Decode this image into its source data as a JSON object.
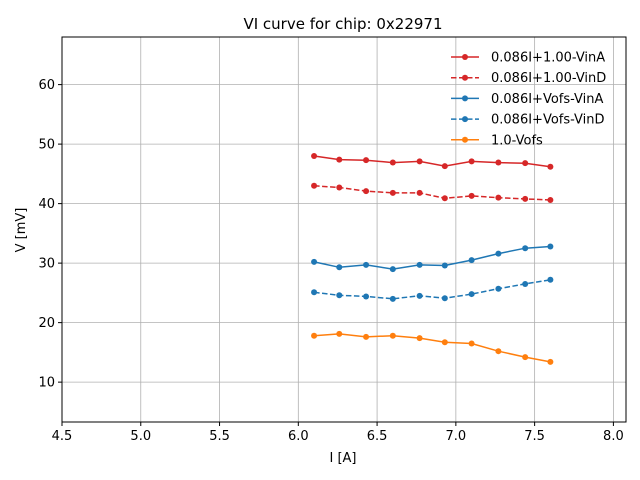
{
  "chart_data": {
    "type": "line",
    "title": "VI curve for chip: 0x22971",
    "xlabel": "I [A]",
    "ylabel": "V [mV]",
    "xlim": [
      4.5,
      8.08
    ],
    "ylim": [
      3.3,
      68
    ],
    "grid": true,
    "legend_position": "top-right",
    "xticks": [
      4.5,
      5.0,
      5.5,
      6.0,
      6.5,
      7.0,
      7.5,
      8.0
    ],
    "xtick_labels": [
      "4.5",
      "5.0",
      "5.5",
      "6.0",
      "6.5",
      "7.0",
      "7.5",
      "8.0"
    ],
    "yticks": [
      10,
      20,
      30,
      40,
      50,
      60
    ],
    "ytick_labels": [
      "10",
      "20",
      "30",
      "40",
      "50",
      "60"
    ],
    "x": [
      6.1,
      6.26,
      6.43,
      6.6,
      6.77,
      6.93,
      7.1,
      7.27,
      7.44,
      7.6
    ],
    "series": [
      {
        "name": "0.086I+1.00-VinA",
        "color": "#d62728",
        "dashed": false,
        "values": [
          48.0,
          47.4,
          47.3,
          46.9,
          47.1,
          46.3,
          47.1,
          46.9,
          46.8,
          46.2
        ]
      },
      {
        "name": "0.086I+1.00-VinD",
        "color": "#d62728",
        "dashed": true,
        "values": [
          43.0,
          42.7,
          42.1,
          41.8,
          41.8,
          40.9,
          41.3,
          41.0,
          40.8,
          40.6
        ]
      },
      {
        "name": "0.086I+Vofs-VinA",
        "color": "#1f77b4",
        "dashed": false,
        "values": [
          30.2,
          29.3,
          29.7,
          29.0,
          29.7,
          29.6,
          30.5,
          31.6,
          32.5,
          32.8
        ]
      },
      {
        "name": "0.086I+Vofs-VinD",
        "color": "#1f77b4",
        "dashed": true,
        "values": [
          25.1,
          24.6,
          24.4,
          24.0,
          24.5,
          24.1,
          24.8,
          25.7,
          26.5,
          27.2
        ]
      },
      {
        "name": "1.0-Vofs",
        "color": "#ff7f0e",
        "dashed": false,
        "values": [
          17.8,
          18.1,
          17.6,
          17.8,
          17.4,
          16.7,
          16.5,
          15.2,
          14.2,
          13.4
        ]
      }
    ]
  }
}
